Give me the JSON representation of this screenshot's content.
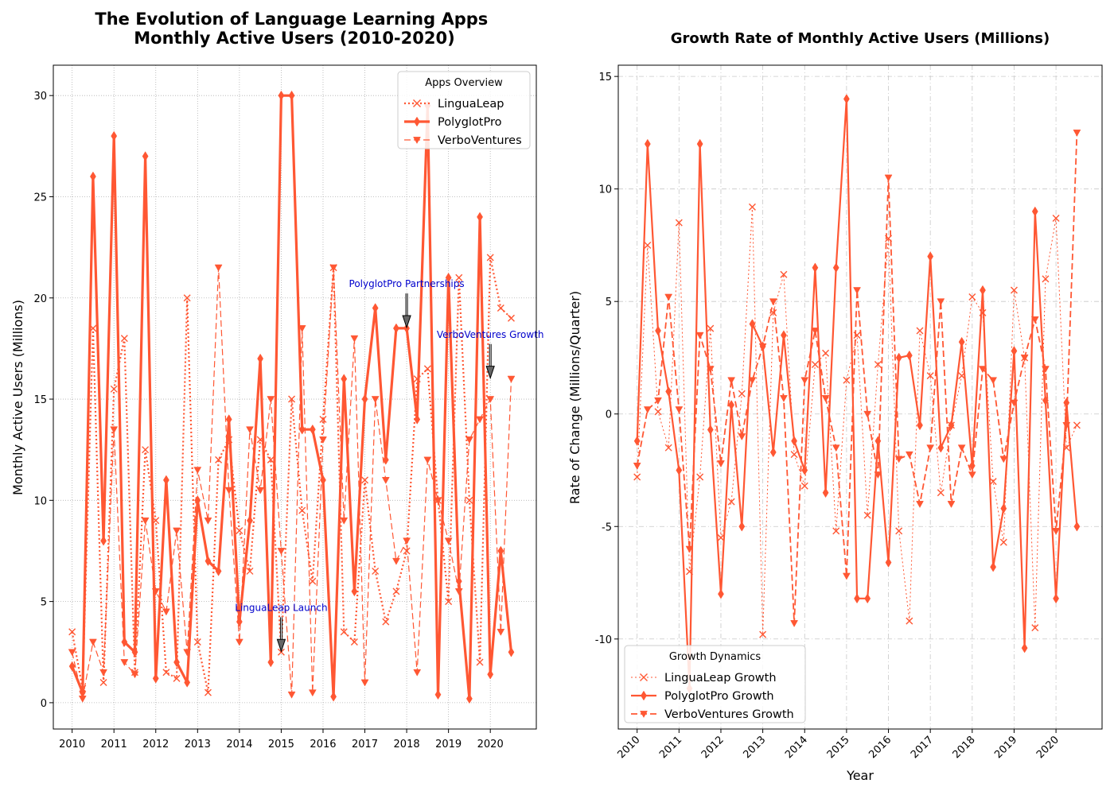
{
  "chart_data": [
    {
      "type": "line",
      "title": "The Evolution of Language Learning Apps\nMonthly Active Users (2010-2020)",
      "xlabel": "",
      "ylabel": "Monthly Active Users (Millions)",
      "xlim": [
        2009.55,
        2021.1
      ],
      "ylim": [
        -1.3,
        31.5
      ],
      "xticks": [
        2010,
        2011,
        2012,
        2013,
        2014,
        2015,
        2016,
        2017,
        2018,
        2019,
        2020
      ],
      "yticks": [
        0,
        5,
        10,
        15,
        20,
        25,
        30
      ],
      "grid": true,
      "legend": {
        "title": "Apps Overview",
        "placement": "upper right"
      },
      "color": "#ff5733",
      "x": [
        2010.0,
        2010.25,
        2010.5,
        2010.75,
        2011.0,
        2011.25,
        2011.5,
        2011.75,
        2012.0,
        2012.25,
        2012.5,
        2012.75,
        2013.0,
        2013.25,
        2013.5,
        2013.75,
        2014.0,
        2014.25,
        2014.5,
        2014.75,
        2015.0,
        2015.25,
        2015.5,
        2015.75,
        2016.0,
        2016.25,
        2016.5,
        2016.75,
        2017.0,
        2017.25,
        2017.5,
        2017.75,
        2018.0,
        2018.25,
        2018.5,
        2018.75,
        2019.0,
        2019.25,
        2019.5,
        2019.75,
        2020.0,
        2020.25,
        2020.5
      ],
      "series": [
        {
          "name": "LinguaLeap",
          "style": "dotted",
          "marker": "x",
          "values": [
            3.5,
            0.7,
            18.5,
            1.0,
            15.5,
            18.0,
            1.5,
            12.5,
            9.0,
            1.5,
            1.2,
            20.0,
            3.0,
            0.5,
            12.0,
            13.0,
            8.5,
            6.5,
            13.0,
            12.0,
            2.5,
            15.0,
            9.5,
            6.0,
            14.0,
            21.5,
            3.5,
            3.0,
            11.0,
            6.5,
            4.0,
            5.5,
            7.5,
            16.0,
            16.5,
            10.0,
            5.0,
            21.0,
            10.0,
            2.0,
            22.0,
            19.5,
            19.0
          ]
        },
        {
          "name": "PolyglotPro",
          "style": "solid",
          "marker": "diamond",
          "values": [
            1.8,
            0.5,
            26.0,
            8.0,
            28.0,
            3.0,
            2.5,
            27.0,
            1.2,
            11.0,
            2.0,
            1.0,
            10.0,
            7.0,
            6.5,
            14.0,
            4.0,
            9.0,
            17.0,
            2.0,
            30.0,
            30.0,
            13.5,
            13.5,
            11.0,
            0.3,
            16.0,
            5.5,
            15.0,
            19.5,
            12.0,
            18.5,
            18.5,
            14.0,
            29.5,
            0.4,
            21.0,
            6.0,
            0.2,
            24.0,
            1.4,
            7.5,
            2.5
          ]
        },
        {
          "name": "VerboVentures",
          "style": "dashed",
          "marker": "triangle-down",
          "values": [
            2.5,
            0.2,
            3.0,
            1.5,
            13.5,
            2.0,
            1.4,
            9.0,
            5.5,
            4.5,
            8.5,
            2.5,
            11.5,
            9.0,
            21.5,
            10.5,
            3.0,
            13.5,
            10.5,
            15.0,
            7.5,
            0.4,
            18.5,
            0.5,
            13.0,
            21.5,
            9.0,
            18.0,
            1.0,
            15.0,
            11.0,
            7.0,
            8.0,
            1.5,
            12.0,
            10.0,
            8.0,
            5.5,
            13.0,
            14.0,
            15.0,
            3.5,
            16.0
          ]
        }
      ],
      "annotations": [
        {
          "text": "LinguaLeap Launch",
          "x": 2015.0,
          "y": 2.5,
          "text_x": 2015.0,
          "text_y": 4.3
        },
        {
          "text": "PolyglotPro Partnerships",
          "x": 2018.0,
          "y": 18.5,
          "text_x": 2018.0,
          "text_y": 20.3
        },
        {
          "text": "VerboVentures Growth",
          "x": 2020.0,
          "y": 16.0,
          "text_x": 2020.0,
          "text_y": 17.8
        }
      ]
    },
    {
      "type": "line",
      "title": "Growth Rate of Monthly Active Users (Millions)",
      "xlabel": "Year",
      "ylabel": "Rate of Change (Millions/Quarter)",
      "xlim": [
        2009.55,
        2021.1
      ],
      "ylim": [
        -14.0,
        15.5
      ],
      "xticks": [
        2010,
        2011,
        2012,
        2013,
        2014,
        2015,
        2016,
        2017,
        2018,
        2019,
        2020
      ],
      "yticks": [
        -10,
        -5,
        0,
        5,
        10,
        15
      ],
      "grid": true,
      "legend": {
        "title": "Growth Dynamics",
        "placement": "lower left"
      },
      "color": "#ff5733",
      "x": [
        2010.0,
        2010.25,
        2010.5,
        2010.75,
        2011.0,
        2011.25,
        2011.5,
        2011.75,
        2012.0,
        2012.25,
        2012.5,
        2012.75,
        2013.0,
        2013.25,
        2013.5,
        2013.75,
        2014.0,
        2014.25,
        2014.5,
        2014.75,
        2015.0,
        2015.25,
        2015.5,
        2015.75,
        2016.0,
        2016.25,
        2016.5,
        2016.75,
        2017.0,
        2017.25,
        2017.5,
        2017.75,
        2018.0,
        2018.25,
        2018.5,
        2018.75,
        2019.0,
        2019.25,
        2019.5,
        2019.75,
        2020.0,
        2020.25,
        2020.5
      ],
      "series": [
        {
          "name": "LinguaLeap Growth",
          "style": "dotted",
          "marker": "x",
          "values": [
            -2.8,
            7.5,
            0.1,
            -1.5,
            8.5,
            -7.0,
            -2.8,
            3.8,
            -5.5,
            -3.9,
            0.9,
            9.2,
            -9.8,
            4.5,
            6.2,
            -1.8,
            -3.2,
            2.2,
            2.7,
            -5.2,
            1.5,
            3.5,
            -4.5,
            2.2,
            7.8,
            -5.2,
            -9.2,
            3.7,
            1.7,
            -3.5,
            -0.5,
            1.7,
            5.2,
            4.5,
            -3.0,
            -5.7,
            5.5,
            2.5,
            -9.5,
            6.0,
            8.7,
            -1.5,
            -0.5
          ]
        },
        {
          "name": "PolyglotPro Growth",
          "style": "solid",
          "marker": "diamond",
          "values": [
            -1.2,
            12.0,
            3.7,
            1.0,
            -2.5,
            -12.2,
            12.0,
            -0.7,
            -8.0,
            0.4,
            -5.0,
            4.0,
            3.0,
            -1.7,
            3.5,
            -1.2,
            -2.5,
            6.5,
            -3.5,
            6.5,
            14.0,
            -8.2,
            -8.2,
            -1.2,
            -6.6,
            2.5,
            2.6,
            -0.5,
            7.0,
            -1.5,
            -0.5,
            3.2,
            -2.3,
            5.5,
            -6.8,
            -4.2,
            2.8,
            -10.4,
            9.0,
            0.6,
            -8.2,
            0.5,
            -5.0
          ]
        },
        {
          "name": "VerboVentures Growth",
          "style": "dashed",
          "marker": "triangle-down",
          "values": [
            -2.3,
            0.2,
            0.6,
            5.2,
            0.2,
            -6.0,
            3.5,
            2.0,
            -2.2,
            1.5,
            -1.0,
            1.5,
            3.0,
            5.0,
            0.7,
            -9.3,
            1.5,
            3.7,
            0.7,
            -1.5,
            -7.2,
            5.5,
            0.0,
            -2.7,
            10.5,
            -2.0,
            -1.8,
            -4.0,
            -1.5,
            5.0,
            -4.0,
            -1.5,
            -2.7,
            2.0,
            1.5,
            -2.0,
            0.5,
            2.5,
            4.2,
            2.0,
            -5.2,
            -0.5,
            12.5
          ]
        }
      ]
    }
  ]
}
